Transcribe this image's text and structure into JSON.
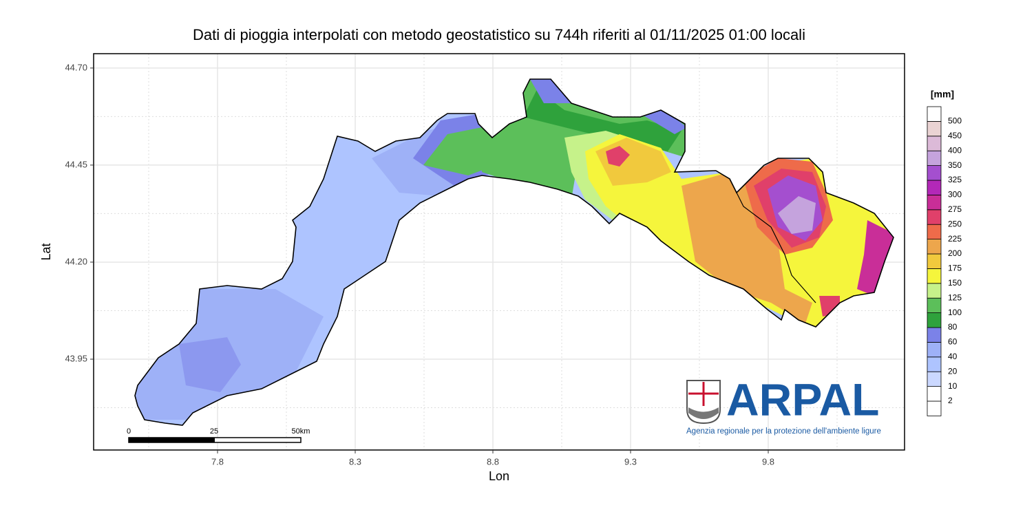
{
  "title": "Dati di pioggia interpolati con metodo geostatistico su 744h riferiti al 01/11/2025 01:00 locali",
  "map": {
    "x_label": "Lon",
    "y_label": "Lat",
    "xlim": [
      7.35,
      10.295
    ],
    "ylim": [
      43.716,
      44.737
    ],
    "xticks": [
      7.8,
      8.3,
      8.8,
      9.3,
      9.8
    ],
    "yticks": [
      {
        "value": 44.7,
        "label": "44.70"
      },
      44.45,
      {
        "value": 44.2,
        "label": "44.20"
      },
      43.95
    ],
    "grid": true
  },
  "legend": {
    "title": "[mm]",
    "breaks": [
      2,
      10,
      20,
      40,
      60,
      80,
      100,
      125,
      150,
      175,
      200,
      225,
      250,
      275,
      300,
      325,
      350,
      400,
      450,
      500
    ],
    "colors": [
      "#ffffff",
      "#ffffff",
      "#cbd8ff",
      "#aec4ff",
      "#9eb1f7",
      "#7b82e8",
      "#2fa23c",
      "#5cbf5a",
      "#c6f28a",
      "#f5f53c",
      "#f1c93d",
      "#eda64c",
      "#ee6b4a",
      "#e0406a",
      "#c92e98",
      "#b328b8",
      "#a44fcf",
      "#c5a3dd",
      "#dcbad8",
      "#ead3d3",
      "#ffffff"
    ]
  },
  "scale_bar": {
    "labels": [
      "0",
      "25",
      "50km"
    ]
  },
  "logo": {
    "name": "ARPAL",
    "tagline": "Agenzia regionale per la protezione dell'ambiente ligure"
  }
}
